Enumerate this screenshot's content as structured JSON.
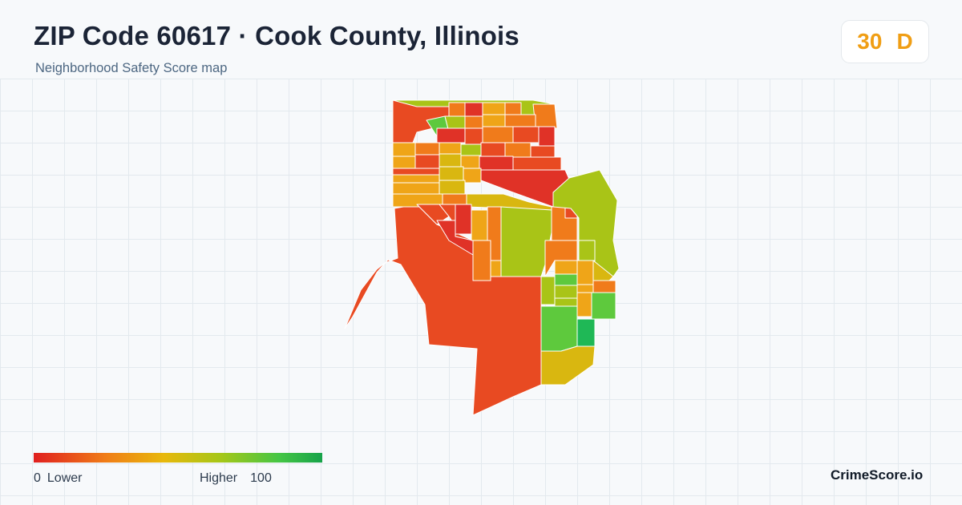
{
  "header": {
    "title": "ZIP Code 60617 · Cook County, Illinois",
    "subtitle": "Neighborhood Safety Score map"
  },
  "score": {
    "value": "30",
    "grade": "D",
    "color": "#f09e14"
  },
  "legend": {
    "min_value": "0",
    "min_label": "Lower",
    "max_label": "Higher",
    "max_value": "100",
    "gradient_colors": [
      "#e01f1f",
      "#f07d17",
      "#e8b80c",
      "#a5c718",
      "#45c645",
      "#17a34a"
    ]
  },
  "brand": "CrimeScore.io",
  "map": {
    "color_scale": {
      "red": "#e03227",
      "red_orange": "#e84a22",
      "orange": "#f07b1b",
      "amber": "#efa518",
      "mustard": "#d9b710",
      "yellow_green": "#a9c417",
      "light_green": "#5ec93d",
      "green": "#1fb856"
    }
  }
}
